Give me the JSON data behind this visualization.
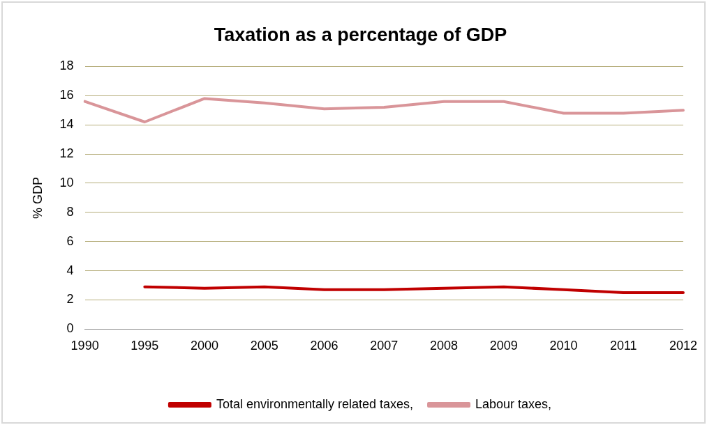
{
  "chart_data": {
    "type": "line",
    "title": "Taxation as a percentage of GDP",
    "ylabel": "% GDP",
    "categories": [
      "1990",
      "1995",
      "2000",
      "2005",
      "2006",
      "2007",
      "2008",
      "2009",
      "2010",
      "2011",
      "2012"
    ],
    "series": [
      {
        "name": "Total environmentally related taxes,",
        "color": "#c00000",
        "values": [
          null,
          2.9,
          2.8,
          2.9,
          2.7,
          2.7,
          2.8,
          2.9,
          2.7,
          2.5,
          2.5
        ]
      },
      {
        "name": "Labour taxes,",
        "color": "#d99599",
        "values": [
          15.6,
          14.2,
          15.8,
          15.5,
          15.1,
          15.2,
          15.6,
          15.6,
          14.8,
          14.8,
          15.0
        ]
      }
    ],
    "ylim": [
      0,
      18
    ],
    "yticks": [
      0,
      2,
      4,
      6,
      8,
      10,
      12,
      14,
      16,
      18
    ],
    "grid": "y",
    "legend": "bottom",
    "marker": "none",
    "line_style": "solid"
  }
}
